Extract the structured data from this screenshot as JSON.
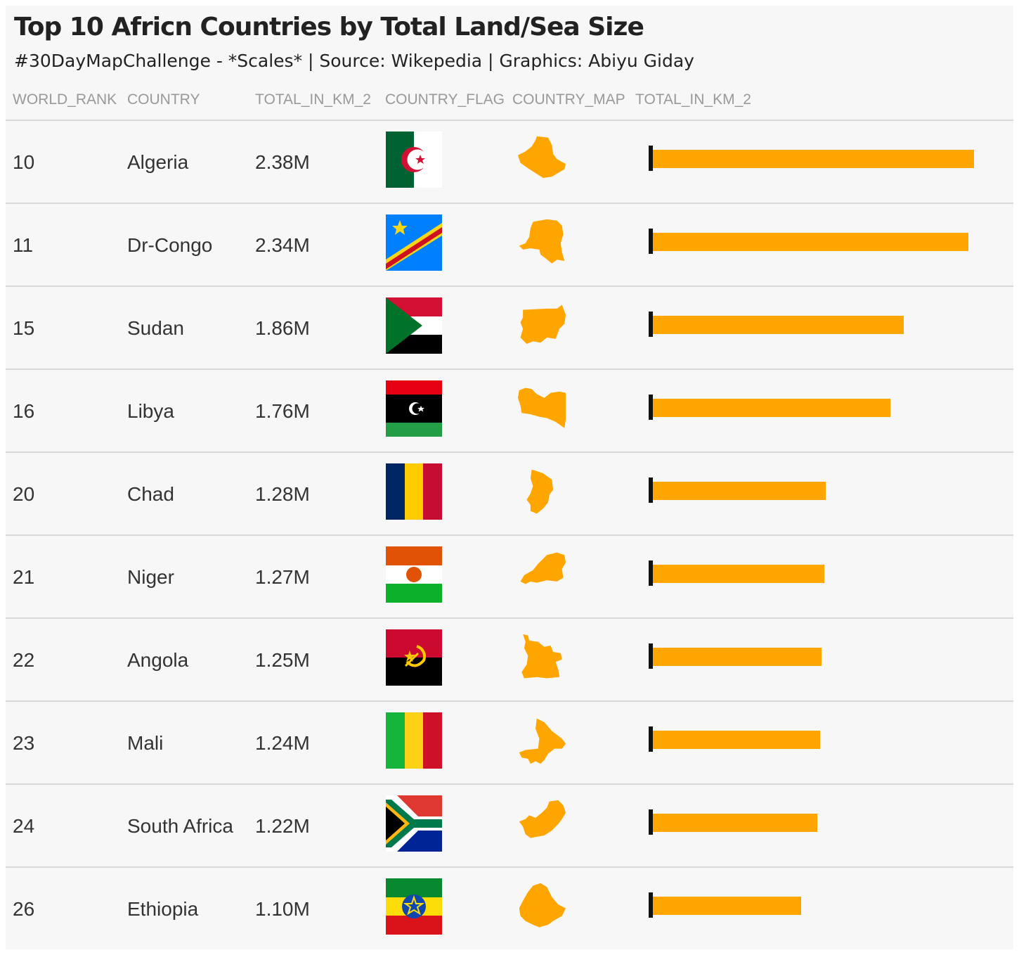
{
  "title": "Top 10 Africn Countries by Total Land/Sea Size",
  "subtitle": "#30DayMapChallenge - *Scales* | Source: Wikepedia | Graphics: Abiyu Giday",
  "columns": [
    "WORLD_RANK",
    "COUNTRY",
    "TOTAL_IN_KM_2",
    "COUNTRY_FLAG",
    "COUNTRY_MAP",
    "TOTAL_IN_KM_2"
  ],
  "colors": {
    "bar": "#ffa500",
    "bar_axis": "#111111",
    "row_divider": "#d8d8d8",
    "background": "#f7f7f7"
  },
  "chart_data": {
    "type": "table",
    "bar_domain": [
      0,
      2.38
    ],
    "value_unit": "M km²",
    "rows": [
      {
        "rank": "10",
        "country": "Algeria",
        "total": "2.38M",
        "value": 2.38,
        "flag": "algeria-flag",
        "map": "algeria-map"
      },
      {
        "rank": "11",
        "country": "Dr-Congo",
        "total": "2.34M",
        "value": 2.34,
        "flag": "dr-congo-flag",
        "map": "dr-congo-map"
      },
      {
        "rank": "15",
        "country": "Sudan",
        "total": "1.86M",
        "value": 1.86,
        "flag": "sudan-flag",
        "map": "sudan-map"
      },
      {
        "rank": "16",
        "country": "Libya",
        "total": "1.76M",
        "value": 1.76,
        "flag": "libya-flag",
        "map": "libya-map"
      },
      {
        "rank": "20",
        "country": "Chad",
        "total": "1.28M",
        "value": 1.28,
        "flag": "chad-flag",
        "map": "chad-map"
      },
      {
        "rank": "21",
        "country": "Niger",
        "total": "1.27M",
        "value": 1.27,
        "flag": "niger-flag",
        "map": "niger-map"
      },
      {
        "rank": "22",
        "country": "Angola",
        "total": "1.25M",
        "value": 1.25,
        "flag": "angola-flag",
        "map": "angola-map"
      },
      {
        "rank": "23",
        "country": "Mali",
        "total": "1.24M",
        "value": 1.24,
        "flag": "mali-flag",
        "map": "mali-map"
      },
      {
        "rank": "24",
        "country": "South Africa",
        "total": "1.22M",
        "value": 1.22,
        "flag": "south-africa-flag",
        "map": "south-africa-map"
      },
      {
        "rank": "26",
        "country": "Ethiopia",
        "total": "1.10M",
        "value": 1.1,
        "flag": "ethiopia-flag",
        "map": "ethiopia-map"
      }
    ]
  }
}
